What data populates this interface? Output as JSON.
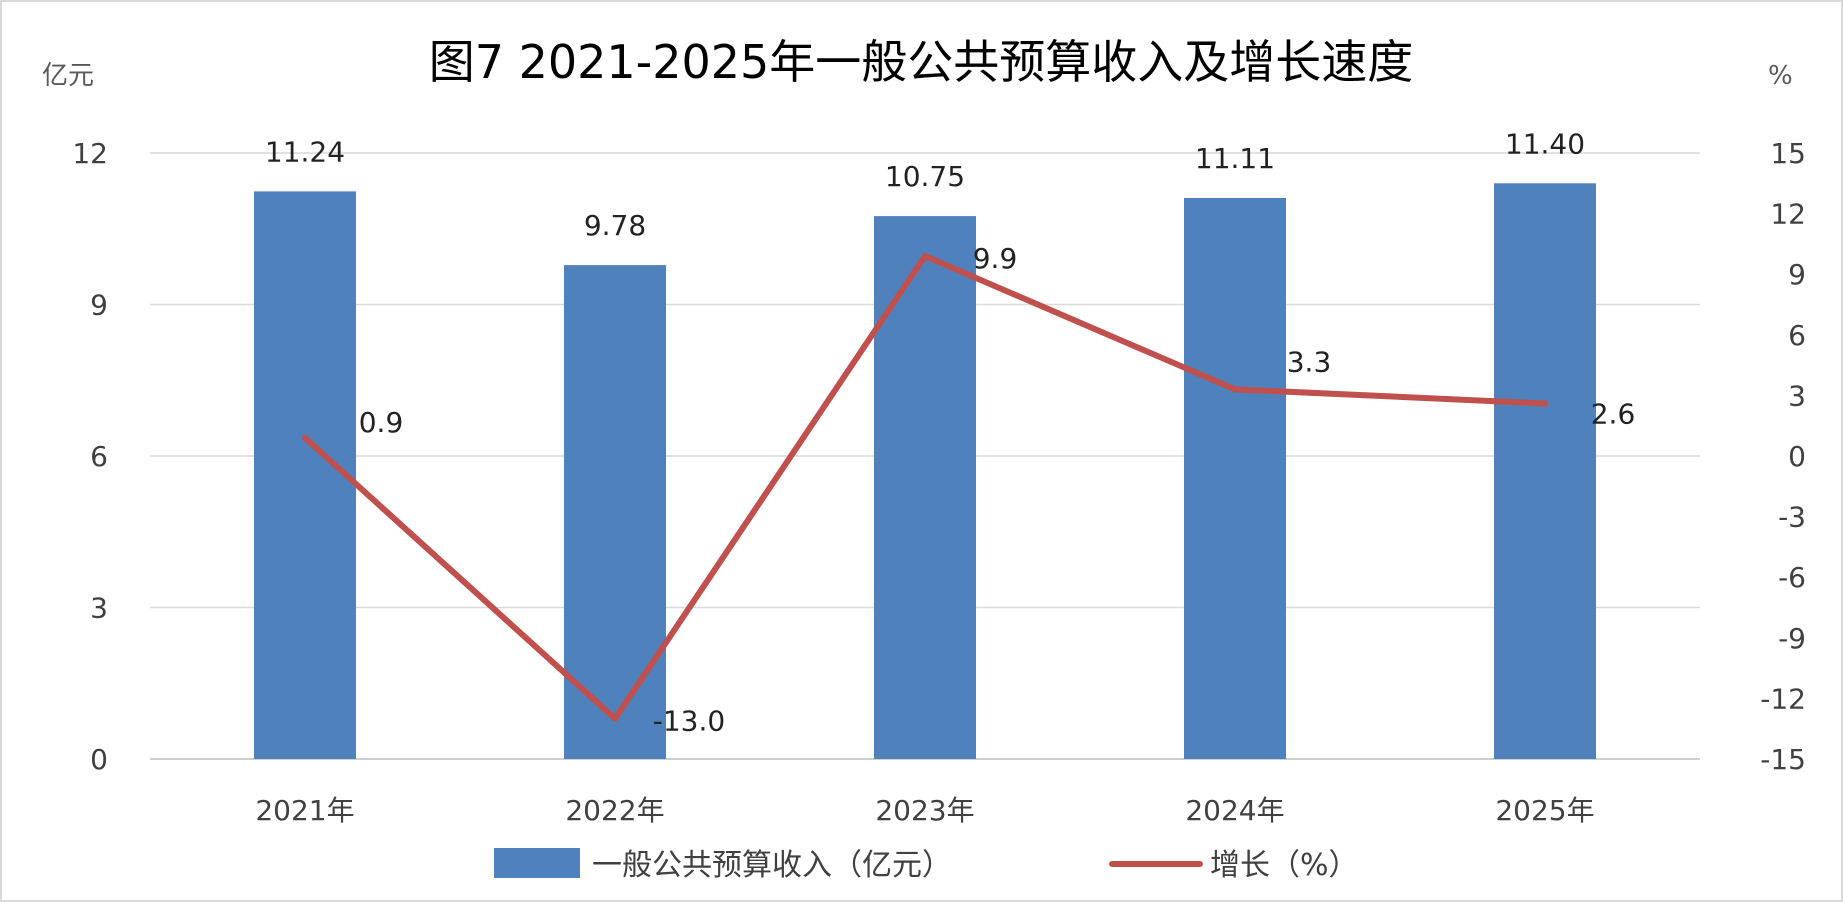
{
  "chart_data": {
    "type": "bar",
    "title": "图7 2021-2025年一般公共预算收入及增长速度",
    "categories": [
      "2021年",
      "2022年",
      "2023年",
      "2024年",
      "2025年"
    ],
    "y_left": {
      "unit": "亿元",
      "ylim": [
        0,
        12
      ],
      "ticks": [
        0,
        3,
        6,
        9,
        12
      ]
    },
    "y_right": {
      "unit": "%",
      "ylim": [
        -15,
        15
      ],
      "ticks": [
        -15,
        -12,
        -9,
        -6,
        -3,
        0,
        3,
        6,
        9,
        12,
        15
      ]
    },
    "series": [
      {
        "name": "一般公共预算收入（亿元）",
        "type": "bar",
        "axis": "left",
        "color": "#4f81bd",
        "values": [
          11.24,
          9.78,
          10.75,
          11.11,
          11.4
        ],
        "labels": [
          "11.24",
          "9.78",
          "10.75",
          "11.11",
          "11.40"
        ]
      },
      {
        "name": "增长（%）",
        "type": "line",
        "axis": "right",
        "color": "#c0504d",
        "values": [
          0.9,
          -13.0,
          9.9,
          3.3,
          2.6
        ],
        "labels": [
          "0.9",
          "-13.0",
          "9.9",
          "3.3",
          "2.6"
        ]
      }
    ],
    "grid": true,
    "legend_position": "bottom"
  }
}
